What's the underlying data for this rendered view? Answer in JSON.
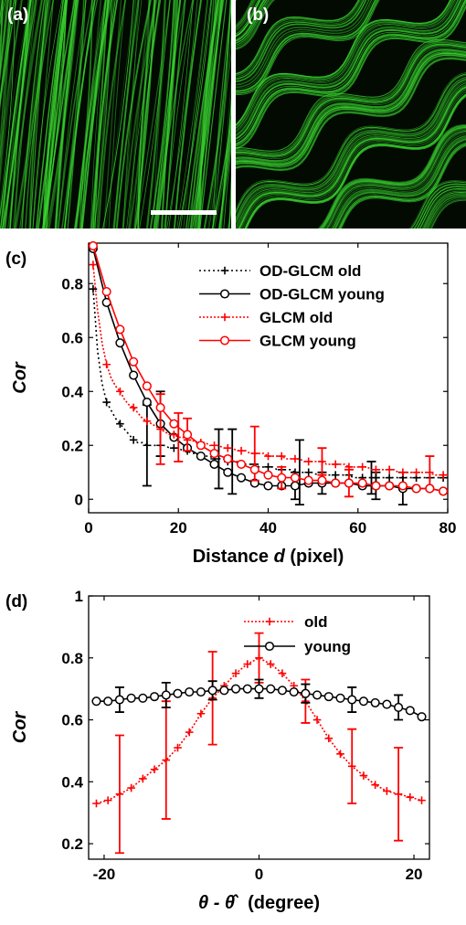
{
  "panels": {
    "a": {
      "label": "(a)"
    },
    "b": {
      "label": "(b)"
    },
    "c": {
      "label": "(c)"
    },
    "d": {
      "label": "(d)"
    }
  },
  "colors": {
    "fiber_green": "#39d62f",
    "black": "#000000",
    "red": "#ff0000"
  },
  "chart_data": [
    {
      "id": "c",
      "type": "line",
      "xlabel_text": "Distance ",
      "xlabel_italic": "d",
      "xlabel_suffix": " (pixel)",
      "ylabel": "Cor",
      "xlim": [
        0,
        80
      ],
      "ylim": [
        -0.05,
        0.95
      ],
      "xticks": [
        0,
        20,
        40,
        60,
        80
      ],
      "yticks": [
        0,
        0.2,
        0.4,
        0.6,
        0.8
      ],
      "ytick_labels": [
        "0",
        "0.2",
        "0.4",
        "0.6",
        "0.8"
      ],
      "legend_position": "top-right",
      "series": [
        {
          "name": "OD-GLCM old",
          "color": "#000000",
          "dash": "2,3",
          "marker": "plus",
          "x": [
            1,
            2,
            3,
            4,
            5,
            6,
            7,
            8,
            9,
            10,
            11,
            12,
            13,
            14,
            15,
            16,
            17,
            18,
            19,
            20,
            21,
            22,
            23,
            24,
            25,
            26,
            27,
            28,
            29,
            30,
            31,
            32,
            33,
            34,
            35,
            36,
            37,
            38,
            39,
            40,
            41,
            42,
            43,
            44,
            45,
            46,
            47,
            48,
            49,
            50,
            51,
            52,
            53,
            54,
            55,
            56,
            57,
            58,
            59,
            60,
            61,
            62,
            63,
            64,
            65,
            66,
            67,
            68,
            69,
            70,
            71,
            72,
            73,
            74,
            75,
            76,
            77,
            78,
            79,
            80
          ],
          "y": [
            0.78,
            0.55,
            0.43,
            0.36,
            0.33,
            0.3,
            0.28,
            0.26,
            0.24,
            0.22,
            0.21,
            0.21,
            0.2,
            0.2,
            0.2,
            0.2,
            0.2,
            0.19,
            0.19,
            0.19,
            0.18,
            0.18,
            0.17,
            0.17,
            0.16,
            0.16,
            0.16,
            0.15,
            0.15,
            0.15,
            0.14,
            0.14,
            0.14,
            0.13,
            0.13,
            0.13,
            0.13,
            0.12,
            0.12,
            0.12,
            0.12,
            0.11,
            0.11,
            0.11,
            0.11,
            0.1,
            0.1,
            0.1,
            0.1,
            0.1,
            0.09,
            0.09,
            0.09,
            0.09,
            0.09,
            0.09,
            0.09,
            0.09,
            0.08,
            0.08,
            0.08,
            0.08,
            0.08,
            0.08,
            0.08,
            0.08,
            0.08,
            0.08,
            0.08,
            0.08,
            0.08,
            0.08,
            0.08,
            0.08,
            0.08,
            0.08,
            0.08,
            0.08,
            0.08,
            0.08
          ],
          "marker_every": 3,
          "errorbars": [
            {
              "x": 13,
              "y": 0.2,
              "err": 0.15
            },
            {
              "x": 29,
              "y": 0.15,
              "err": 0.11
            },
            {
              "x": 32,
              "y": 0.14,
              "err": 0.12
            },
            {
              "x": 47,
              "y": 0.1,
              "err": 0.12
            },
            {
              "x": 63,
              "y": 0.08,
              "err": 0.06
            }
          ]
        },
        {
          "name": "OD-GLCM young",
          "color": "#000000",
          "dash": "",
          "marker": "circle",
          "x": [
            1,
            4,
            7,
            10,
            13,
            16,
            19,
            22,
            25,
            28,
            31,
            34,
            37,
            40,
            43,
            46,
            49,
            52,
            55,
            58,
            61,
            64,
            67,
            70,
            73,
            76,
            79
          ],
          "y": [
            0.93,
            0.73,
            0.58,
            0.46,
            0.36,
            0.28,
            0.23,
            0.19,
            0.16,
            0.13,
            0.1,
            0.08,
            0.06,
            0.05,
            0.05,
            0.05,
            0.06,
            0.06,
            0.06,
            0.06,
            0.05,
            0.05,
            0.05,
            0.04,
            0.04,
            0.04,
            0.03
          ],
          "errorbars": [
            {
              "x": 16,
              "y": 0.28,
              "err": 0.12
            },
            {
              "x": 46,
              "y": 0.05,
              "err": 0.05
            },
            {
              "x": 52,
              "y": 0.06,
              "err": 0.04
            },
            {
              "x": 64,
              "y": 0.05,
              "err": 0.05
            },
            {
              "x": 70,
              "y": 0.04,
              "err": 0.06
            }
          ]
        },
        {
          "name": "GLCM old",
          "color": "#ff0000",
          "dash": "2,2",
          "marker": "plus",
          "x": [
            1,
            2,
            3,
            4,
            5,
            6,
            7,
            8,
            9,
            10,
            11,
            12,
            13,
            14,
            15,
            16,
            17,
            18,
            19,
            20,
            21,
            22,
            23,
            24,
            25,
            26,
            27,
            28,
            29,
            30,
            31,
            32,
            33,
            34,
            35,
            36,
            37,
            38,
            39,
            40,
            41,
            42,
            43,
            44,
            45,
            46,
            47,
            48,
            49,
            50,
            51,
            52,
            53,
            54,
            55,
            56,
            57,
            58,
            59,
            60,
            61,
            62,
            63,
            64,
            65,
            66,
            67,
            68,
            69,
            70,
            71,
            72,
            73,
            74,
            75,
            76,
            77,
            78,
            79,
            80
          ],
          "y": [
            0.87,
            0.7,
            0.58,
            0.5,
            0.45,
            0.42,
            0.4,
            0.37,
            0.35,
            0.34,
            0.32,
            0.3,
            0.29,
            0.28,
            0.27,
            0.26,
            0.25,
            0.24,
            0.24,
            0.23,
            0.23,
            0.22,
            0.22,
            0.21,
            0.21,
            0.21,
            0.2,
            0.2,
            0.2,
            0.19,
            0.19,
            0.19,
            0.18,
            0.18,
            0.18,
            0.17,
            0.17,
            0.17,
            0.17,
            0.16,
            0.16,
            0.16,
            0.16,
            0.15,
            0.15,
            0.15,
            0.15,
            0.14,
            0.14,
            0.14,
            0.14,
            0.14,
            0.13,
            0.13,
            0.13,
            0.13,
            0.13,
            0.12,
            0.12,
            0.12,
            0.12,
            0.12,
            0.11,
            0.11,
            0.11,
            0.11,
            0.11,
            0.11,
            0.1,
            0.1,
            0.1,
            0.1,
            0.1,
            0.1,
            0.1,
            0.1,
            0.09,
            0.09,
            0.09,
            0.09
          ],
          "marker_every": 3,
          "errorbars": [
            {
              "x": 16,
              "y": 0.26,
              "err": 0.13
            },
            {
              "x": 20,
              "y": 0.23,
              "err": 0.09
            },
            {
              "x": 37,
              "y": 0.17,
              "err": 0.1
            },
            {
              "x": 52,
              "y": 0.14,
              "err": 0.05
            },
            {
              "x": 76,
              "y": 0.1,
              "err": 0.06
            }
          ]
        },
        {
          "name": "GLCM young",
          "color": "#ff0000",
          "dash": "",
          "marker": "circle",
          "x": [
            1,
            4,
            7,
            10,
            13,
            16,
            19,
            22,
            25,
            28,
            31,
            34,
            37,
            40,
            43,
            46,
            49,
            52,
            55,
            58,
            61,
            64,
            67,
            70,
            73,
            76,
            79
          ],
          "y": [
            0.94,
            0.77,
            0.63,
            0.51,
            0.42,
            0.34,
            0.28,
            0.24,
            0.2,
            0.17,
            0.15,
            0.13,
            0.11,
            0.09,
            0.08,
            0.08,
            0.07,
            0.07,
            0.06,
            0.06,
            0.06,
            0.05,
            0.05,
            0.05,
            0.04,
            0.04,
            0.03
          ],
          "errorbars": [
            {
              "x": 22,
              "y": 0.24,
              "err": 0.06
            },
            {
              "x": 43,
              "y": 0.08,
              "err": 0.04
            },
            {
              "x": 58,
              "y": 0.06,
              "err": 0.05
            }
          ]
        }
      ]
    },
    {
      "id": "d",
      "type": "line",
      "xlabel_math": "θ - θ̂",
      "xlabel_suffix": "(degree)",
      "ylabel": "Cor",
      "xlim": [
        -22,
        22
      ],
      "ylim": [
        0.15,
        1.0
      ],
      "xticks": [
        -20,
        0,
        20
      ],
      "yticks": [
        0.2,
        0.4,
        0.6,
        0.8,
        1.0
      ],
      "ytick_labels": [
        "0.2",
        "0.4",
        "0.6",
        "0.8",
        "1"
      ],
      "legend_position": "top-right",
      "series": [
        {
          "name": "old",
          "color": "#ff0000",
          "dash": "2,2",
          "marker": "plus",
          "x": [
            -21,
            -19.5,
            -18,
            -16.5,
            -15,
            -13.5,
            -12,
            -10.5,
            -9,
            -7.5,
            -6,
            -4.5,
            -3,
            -1.5,
            0,
            1.5,
            3,
            4.5,
            6,
            7.5,
            9,
            10.5,
            12,
            13.5,
            15,
            16.5,
            18,
            19.5,
            21
          ],
          "y": [
            0.33,
            0.34,
            0.36,
            0.38,
            0.41,
            0.44,
            0.47,
            0.51,
            0.56,
            0.62,
            0.67,
            0.71,
            0.75,
            0.78,
            0.8,
            0.78,
            0.75,
            0.71,
            0.66,
            0.6,
            0.54,
            0.49,
            0.45,
            0.42,
            0.39,
            0.37,
            0.36,
            0.35,
            0.34
          ],
          "errorbars": [
            {
              "x": -18,
              "y": 0.36,
              "err": 0.19
            },
            {
              "x": -12,
              "y": 0.47,
              "err": 0.19
            },
            {
              "x": -6,
              "y": 0.67,
              "err": 0.15
            },
            {
              "x": 0,
              "y": 0.8,
              "err": 0.08
            },
            {
              "x": 6,
              "y": 0.66,
              "err": 0.07
            },
            {
              "x": 12,
              "y": 0.45,
              "err": 0.12
            },
            {
              "x": 18,
              "y": 0.36,
              "err": 0.15
            }
          ]
        },
        {
          "name": "young",
          "color": "#000000",
          "dash": "",
          "marker": "circle",
          "x": [
            -21,
            -19.5,
            -18,
            -16.5,
            -15,
            -13.5,
            -12,
            -10.5,
            -9,
            -7.5,
            -6,
            -4.5,
            -3,
            -1.5,
            0,
            1.5,
            3,
            4.5,
            6,
            7.5,
            9,
            10.5,
            12,
            13.5,
            15,
            16.5,
            18,
            19.5,
            21
          ],
          "y": [
            0.66,
            0.66,
            0.665,
            0.67,
            0.67,
            0.675,
            0.68,
            0.685,
            0.69,
            0.69,
            0.695,
            0.695,
            0.7,
            0.7,
            0.7,
            0.7,
            0.695,
            0.69,
            0.685,
            0.68,
            0.675,
            0.67,
            0.665,
            0.66,
            0.655,
            0.65,
            0.64,
            0.63,
            0.61
          ],
          "errorbars": [
            {
              "x": -18,
              "y": 0.665,
              "err": 0.04
            },
            {
              "x": -12,
              "y": 0.68,
              "err": 0.04
            },
            {
              "x": -6,
              "y": 0.695,
              "err": 0.03
            },
            {
              "x": 0,
              "y": 0.7,
              "err": 0.03
            },
            {
              "x": 6,
              "y": 0.685,
              "err": 0.03
            },
            {
              "x": 12,
              "y": 0.665,
              "err": 0.04
            },
            {
              "x": 18,
              "y": 0.64,
              "err": 0.04
            }
          ]
        }
      ]
    }
  ]
}
